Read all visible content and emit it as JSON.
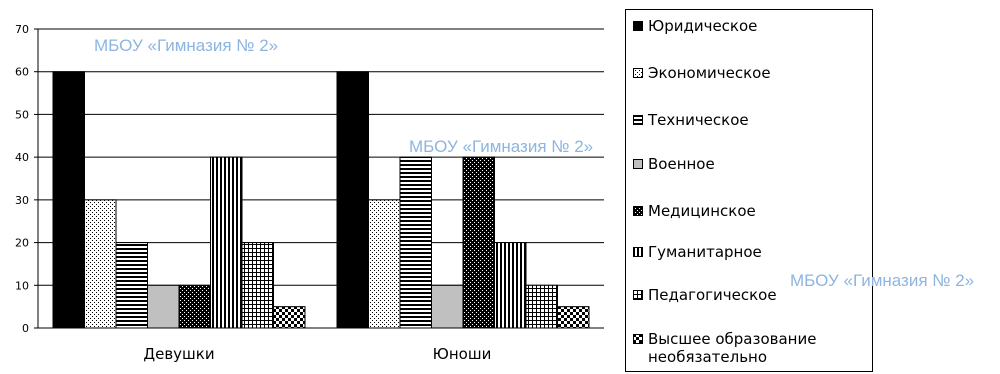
{
  "chart_data": {
    "type": "bar",
    "categories": [
      "Девушки",
      "Юноши"
    ],
    "ylim": [
      0,
      70
    ],
    "yticks": [
      0,
      10,
      20,
      30,
      40,
      50,
      60,
      70
    ],
    "grid": true,
    "legend_position": "right",
    "series": [
      {
        "name": "Юридическое",
        "values": [
          60,
          60
        ],
        "pattern": "solid"
      },
      {
        "name": "Экономическое",
        "values": [
          30,
          30
        ],
        "pattern": "dots"
      },
      {
        "name": "Техническое",
        "values": [
          20,
          40
        ],
        "pattern": "hlines"
      },
      {
        "name": "Военное",
        "values": [
          10,
          10
        ],
        "pattern": "gray"
      },
      {
        "name": "Медицинское",
        "values": [
          10,
          40
        ],
        "pattern": "hatch"
      },
      {
        "name": "Гуманитарное",
        "values": [
          40,
          20
        ],
        "pattern": "vlines"
      },
      {
        "name": "Педагогическое",
        "values": [
          20,
          10
        ],
        "pattern": "grid"
      },
      {
        "name": "Высшее образование\nнеобязательно",
        "values": [
          5,
          5
        ],
        "pattern": "checker"
      }
    ]
  },
  "watermarks": [
    "МБОУ «Гимназия № 2»",
    "МБОУ «Гимназия № 2»",
    "МБОУ «Гимназия № 2»"
  ]
}
